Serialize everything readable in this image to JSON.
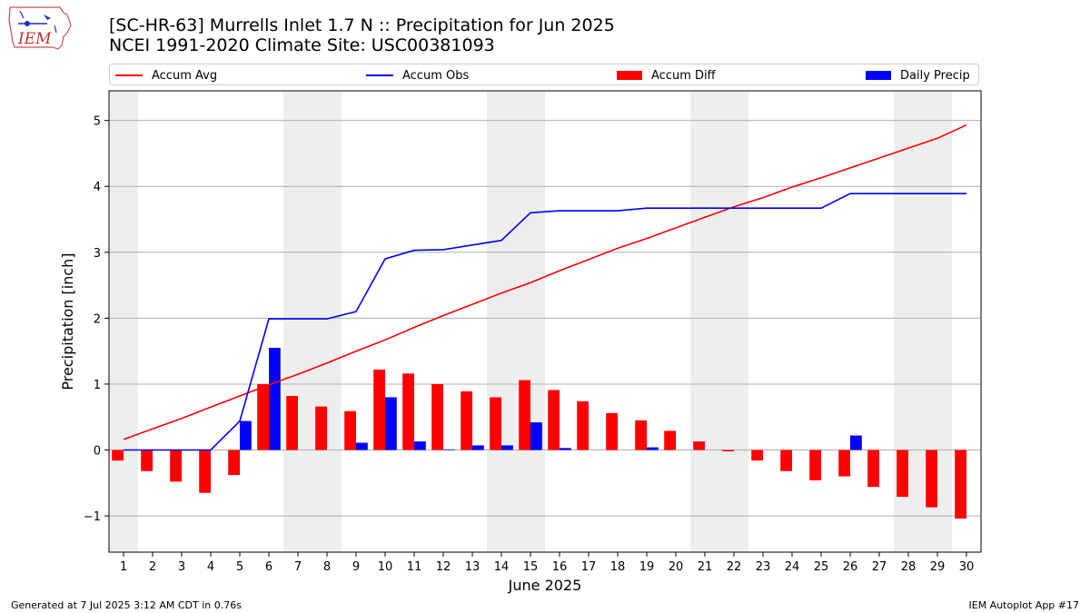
{
  "title_line1": "[SC-HR-63] Murrells Inlet 1.7 N :: Precipitation for Jun 2025",
  "title_line2": "NCEI 1991-2020 Climate Site: USC00381093",
  "logo_text": "IEM",
  "footer_left": "Generated at 7 Jul 2025 3:12 AM CDT in 0.76s",
  "footer_right": "IEM Autoplot App #17",
  "colors": {
    "avg": "#ff0000",
    "obs": "#0000ff",
    "diff": "#ff0000",
    "daily": "#0000ff",
    "weekend_shade": "#eeeeee",
    "grid": "#b0b0b0"
  },
  "chart_data": {
    "type": "bar",
    "xlabel": "June 2025",
    "ylabel": "Precipitation [inch]",
    "ylim": [
      -1.55,
      5.45
    ],
    "yticks": [
      -1,
      0,
      1,
      2,
      3,
      4,
      5
    ],
    "ytick_labels": [
      "−1",
      "0",
      "1",
      "2",
      "3",
      "4",
      "5"
    ],
    "x": [
      1,
      2,
      3,
      4,
      5,
      6,
      7,
      8,
      9,
      10,
      11,
      12,
      13,
      14,
      15,
      16,
      17,
      18,
      19,
      20,
      21,
      22,
      23,
      24,
      25,
      26,
      27,
      28,
      29,
      30
    ],
    "weekend_days": [
      1,
      7,
      8,
      14,
      15,
      21,
      22,
      28,
      29
    ],
    "grid": "horizontal",
    "legend": "top, above plot",
    "series": [
      {
        "name": "Accum Avg",
        "kind": "line",
        "values": [
          0.16,
          0.32,
          0.48,
          0.65,
          0.82,
          0.99,
          1.15,
          1.32,
          1.5,
          1.67,
          1.86,
          2.04,
          2.21,
          2.38,
          2.54,
          2.72,
          2.89,
          3.06,
          3.21,
          3.37,
          3.53,
          3.69,
          3.83,
          3.99,
          4.13,
          4.28,
          4.43,
          4.58,
          4.73,
          4.93
        ]
      },
      {
        "name": "Accum Obs",
        "kind": "line",
        "values": [
          0.0,
          0.0,
          0.0,
          0.0,
          0.44,
          1.99,
          1.99,
          1.99,
          2.1,
          2.9,
          3.03,
          3.04,
          3.11,
          3.18,
          3.6,
          3.63,
          3.63,
          3.63,
          3.67,
          3.67,
          3.67,
          3.67,
          3.67,
          3.67,
          3.67,
          3.89,
          3.89,
          3.89,
          3.89,
          3.89
        ]
      },
      {
        "name": "Accum Diff",
        "kind": "bar",
        "values": [
          -0.16,
          -0.32,
          -0.48,
          -0.65,
          -0.38,
          1.0,
          0.82,
          0.66,
          0.59,
          1.22,
          1.16,
          1.0,
          0.89,
          0.8,
          1.06,
          0.91,
          0.74,
          0.56,
          0.45,
          0.29,
          0.13,
          -0.02,
          -0.16,
          -0.32,
          -0.46,
          -0.4,
          -0.56,
          -0.71,
          -0.87,
          -1.04
        ]
      },
      {
        "name": "Daily Precip",
        "kind": "bar",
        "values": [
          0,
          0,
          0,
          0,
          0.44,
          1.55,
          0,
          0,
          0.11,
          0.8,
          0.13,
          0.01,
          0.07,
          0.07,
          0.42,
          0.03,
          0,
          0,
          0.04,
          0,
          0,
          0,
          0,
          0,
          0,
          0.22,
          0,
          0,
          0,
          0
        ]
      }
    ]
  }
}
